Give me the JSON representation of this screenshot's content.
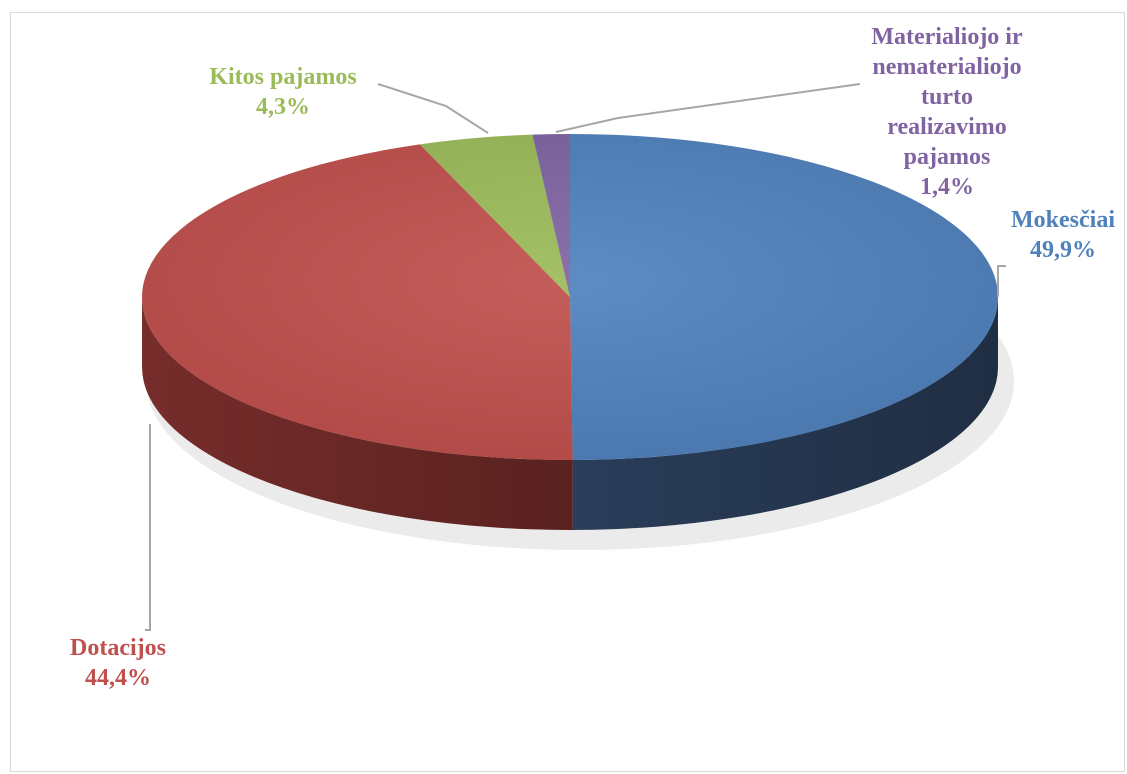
{
  "chart_data": {
    "type": "pie",
    "style": "3d",
    "title": "",
    "legend": "none",
    "series": [
      {
        "name": "Mokesčiai",
        "label": "Mokesčiai",
        "value_label": "49,9%",
        "value": 49.9,
        "color": "#4f81bd",
        "dark": "#2b3f5c"
      },
      {
        "name": "Dotacijos",
        "label": "Dotacijos",
        "value_label": "44,4%",
        "value": 44.4,
        "color": "#c0504d",
        "dark": "#7a2e2c"
      },
      {
        "name": "Kitos pajamos",
        "label": "Kitos pajamos",
        "value_label": "4,3%",
        "value": 4.3,
        "color": "#9bbb59",
        "dark": "#617a36"
      },
      {
        "name": "Materialiojo ir nematerialiojo turto realizavimo pajamos",
        "label_lines": [
          "Materialiojo ir",
          "nematerialiojo",
          "turto",
          "realizavimo",
          "pajamos"
        ],
        "value_label": "1,4%",
        "value": 1.4,
        "color": "#8064a2",
        "dark": "#4d3c63"
      }
    ]
  }
}
